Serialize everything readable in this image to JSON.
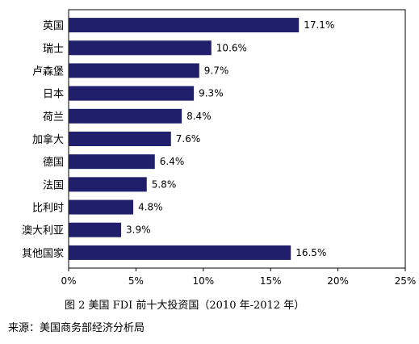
{
  "chart_data": {
    "type": "bar",
    "orientation": "horizontal",
    "categories": [
      "英国",
      "瑞士",
      "卢森堡",
      "日本",
      "荷兰",
      "加拿大",
      "德国",
      "法国",
      "比利时",
      "澳大利亚",
      "其他国家"
    ],
    "values": [
      17.1,
      10.6,
      9.7,
      9.3,
      8.4,
      7.6,
      6.4,
      5.8,
      4.8,
      3.9,
      16.5
    ],
    "value_labels": [
      "17.1%",
      "10.6%",
      "9.7%",
      "9.3%",
      "8.4%",
      "7.6%",
      "6.4%",
      "5.8%",
      "4.8%",
      "3.9%",
      "16.5%"
    ],
    "x_ticks": [
      "0%",
      "5%",
      "10%",
      "15%",
      "20%",
      "25%"
    ],
    "xlim": [
      0,
      25
    ],
    "grid": false,
    "bar_color": "#1f1f6b",
    "caption": "图 2 美国 FDI 前十大投资国（2010 年-2012 年）",
    "source": "来源：美国商务部经济分析局"
  }
}
